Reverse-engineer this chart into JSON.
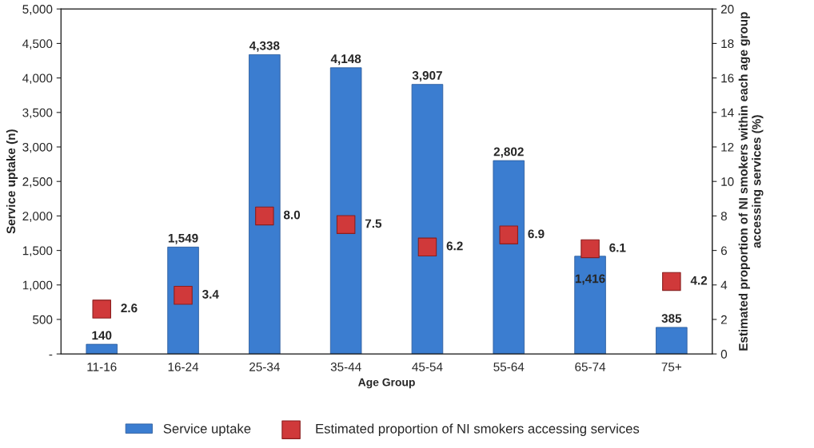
{
  "chart_data": {
    "type": "bar",
    "xlabel": "Age Group",
    "ylabel": "Service uptake (n)",
    "y2label": "Estimated proportion of NI smokers within each age group accessing services (%)",
    "categories": [
      "11-16",
      "16-24",
      "25-34",
      "35-44",
      "45-54",
      "55-64",
      "65-74",
      "75+"
    ],
    "series": [
      {
        "name": "Service uptake",
        "color": "#3b7dd0",
        "values": [
          140,
          1549,
          4338,
          4148,
          3907,
          2802,
          1416,
          385
        ],
        "value_labels": [
          "140",
          "1,549",
          "4,338",
          "4,148",
          "3,907",
          "2,802",
          "1,416",
          "385"
        ]
      },
      {
        "name": "Estimated proportion of NI smokers accessing services",
        "type": "scatter",
        "axis": "y2",
        "color": "#d0393a",
        "values": [
          2.6,
          3.4,
          8.0,
          7.5,
          6.2,
          6.9,
          6.1,
          4.2
        ],
        "value_labels": [
          "2.6",
          "3.4",
          "8.0",
          "7.5",
          "6.2",
          "6.9",
          "6.1",
          "4.2"
        ]
      }
    ],
    "marker": "square",
    "ylim": [
      0,
      5000
    ],
    "yticks": [
      {
        "value": 0,
        "label": "-"
      },
      {
        "value": 500,
        "label": "500"
      },
      {
        "value": 1000,
        "label": "1,000"
      },
      {
        "value": 1500,
        "label": "1,500"
      },
      {
        "value": 2000,
        "label": "2,000"
      },
      {
        "value": 2500,
        "label": "2,500"
      },
      {
        "value": 3000,
        "label": "3,000"
      },
      {
        "value": 3500,
        "label": "3,500"
      },
      {
        "value": 4000,
        "label": "4,000"
      },
      {
        "value": 4500,
        "label": "4,500"
      },
      {
        "value": 5000,
        "label": "5,000"
      }
    ],
    "y2lim": [
      0,
      20
    ],
    "y2ticks": [
      0,
      2,
      4,
      6,
      8,
      10,
      12,
      14,
      16,
      18,
      20
    ],
    "grid": false,
    "legend": "bottom"
  }
}
